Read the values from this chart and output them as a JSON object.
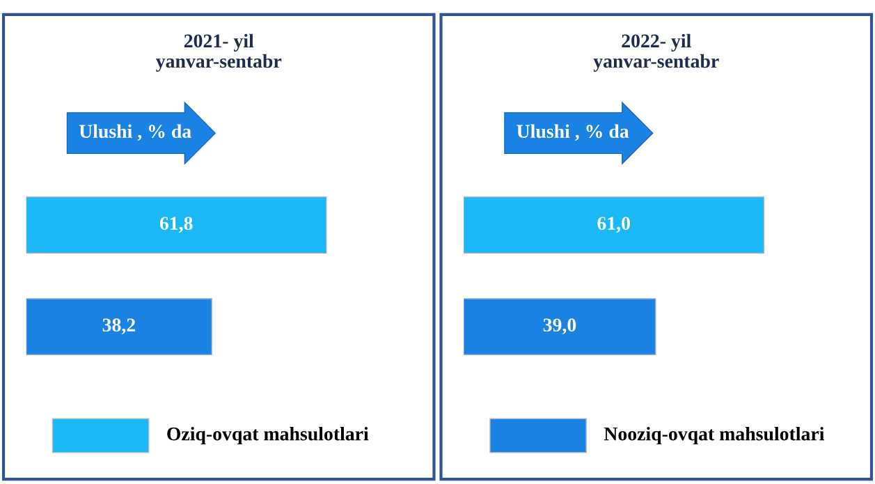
{
  "chart_data": [
    {
      "type": "bar",
      "orientation": "horizontal",
      "title": "2021- yil\nyanvar-sentabr",
      "subtitle": "Ulushi , % da",
      "categories": [
        null,
        null
      ],
      "tick_labels": false,
      "colors": [
        "#1ab8f5",
        "#1a82e2"
      ],
      "values": [
        61.8,
        38.2
      ],
      "value_labels": [
        "61,8",
        "38,2"
      ],
      "annotations": [
        "Oziq-ovqat mahsulotlari"
      ]
    },
    {
      "type": "bar",
      "orientation": "horizontal",
      "title": "2022- yil\nyanvar-sentabr",
      "subtitle": "Ulushi , % da",
      "categories": [
        null,
        null
      ],
      "tick_labels": false,
      "colors": [
        "#1ab8f5",
        "#1a82e2"
      ],
      "values": [
        61.0,
        39.0
      ],
      "value_labels": [
        "61,0",
        "39,0"
      ],
      "annotations": [
        "Nooziq-ovqat mahsulotlari"
      ]
    }
  ]
}
